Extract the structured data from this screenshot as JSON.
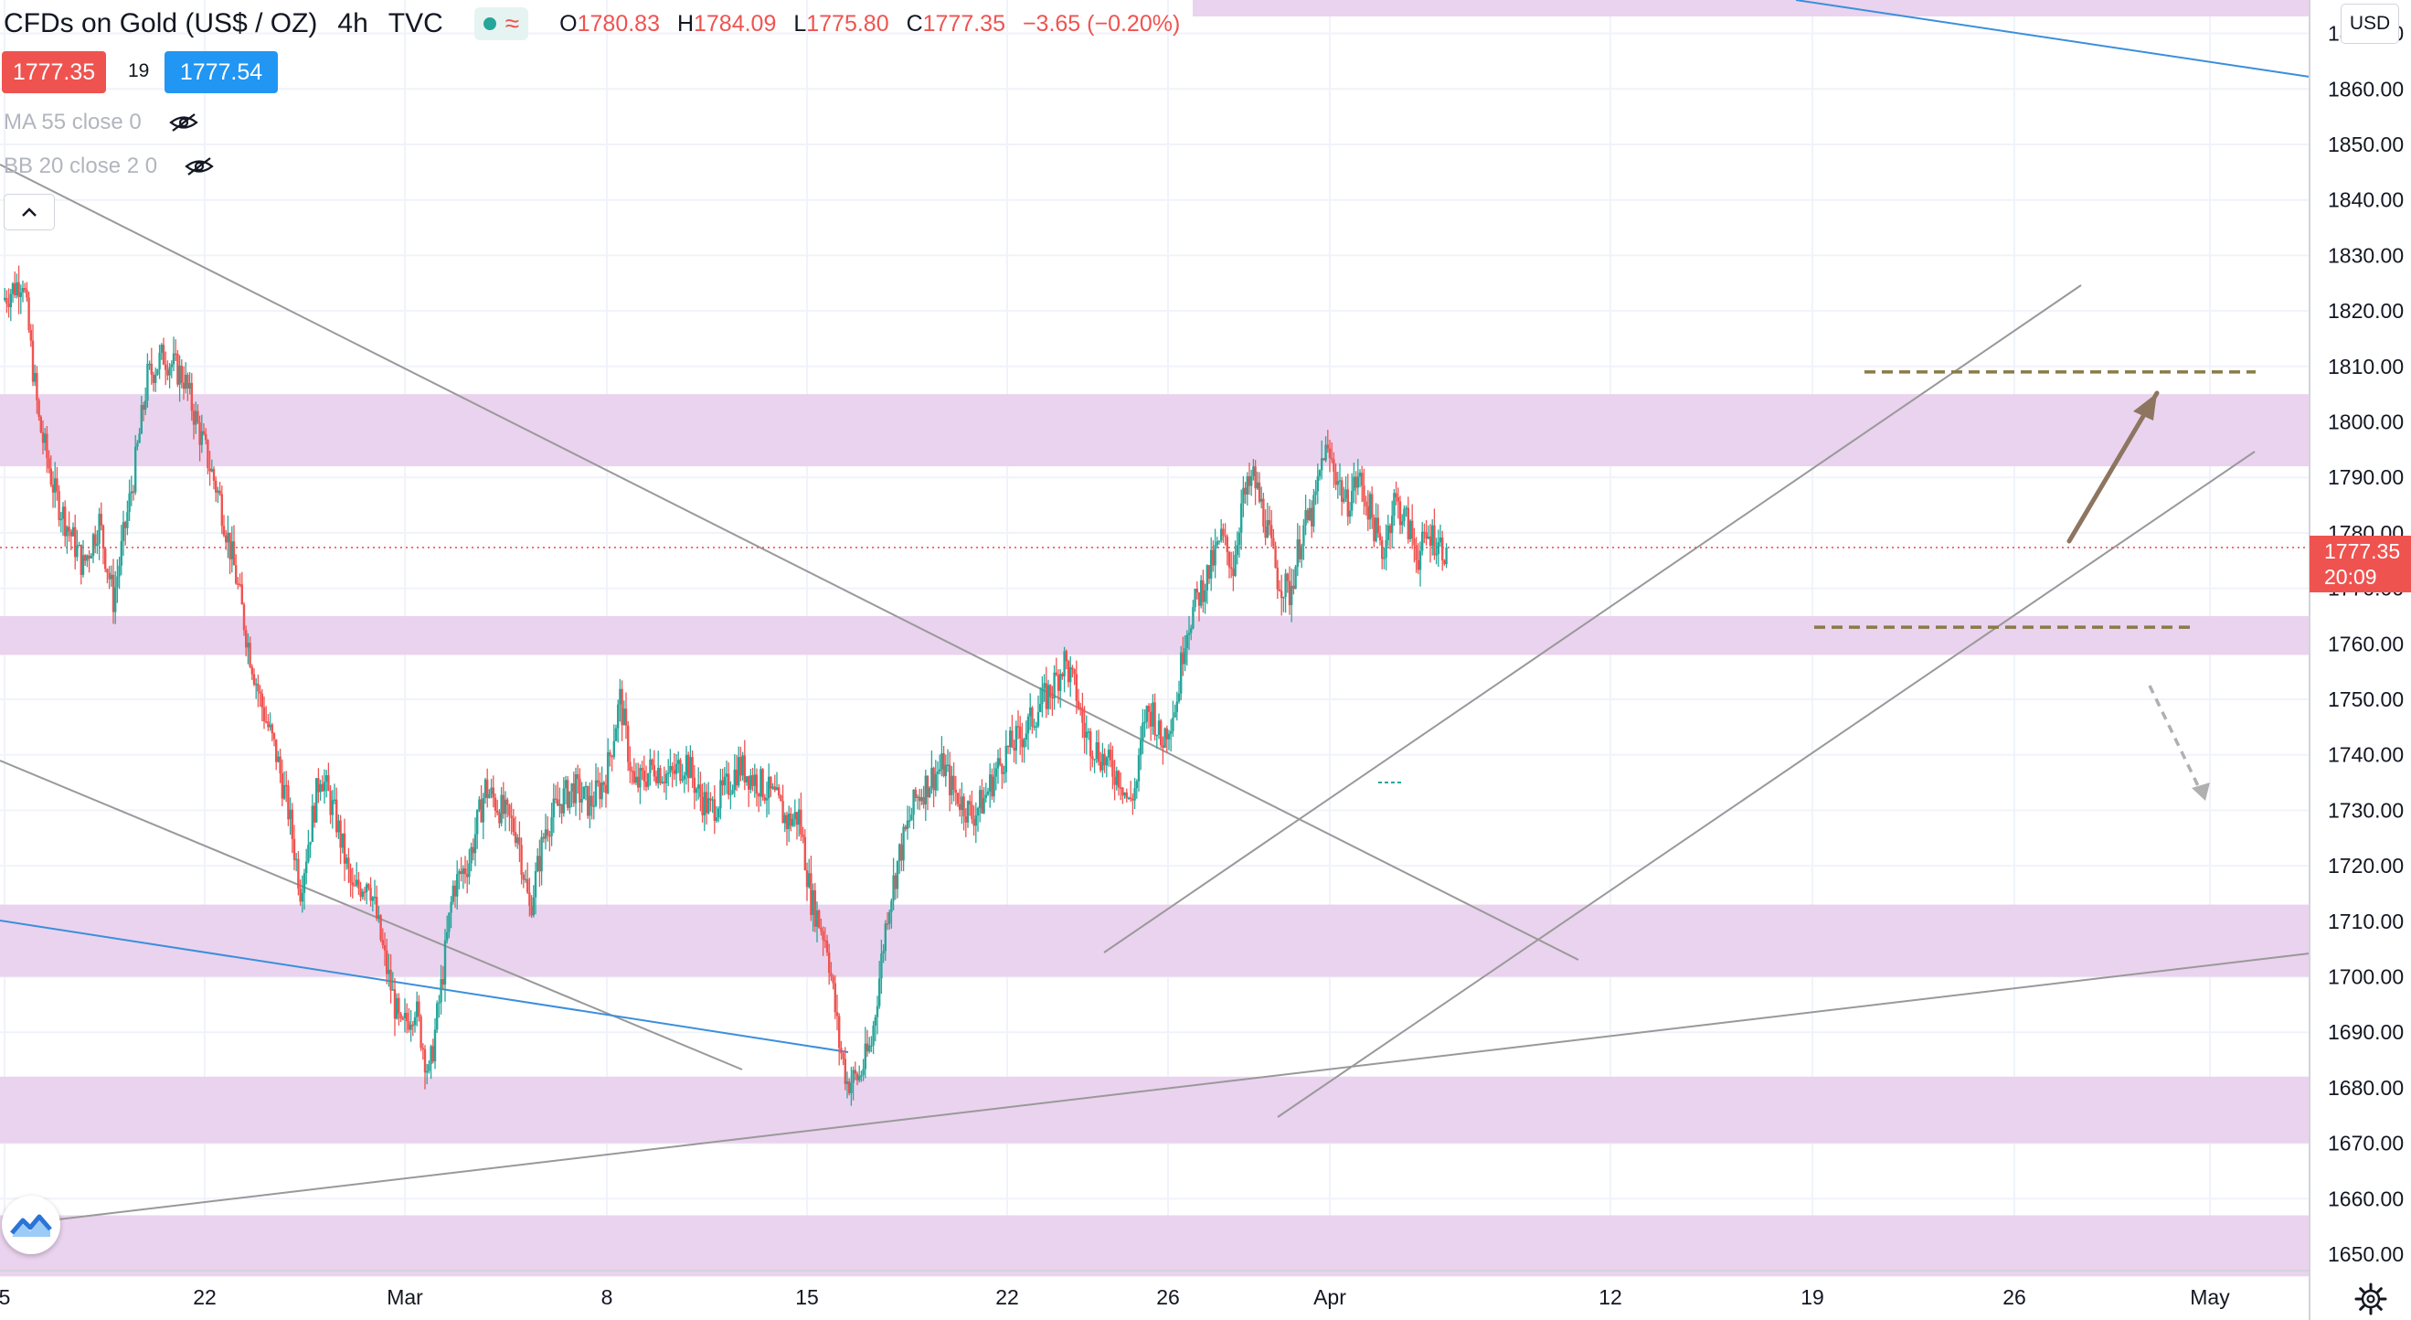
{
  "header": {
    "title": "CFDs on Gold (US$ / OZ)",
    "interval": "4h",
    "source": "TVC",
    "ohlc": {
      "o_label": "O",
      "o": "1780.83",
      "h_label": "H",
      "h": "1784.09",
      "l_label": "L",
      "l": "1775.80",
      "c_label": "C",
      "c": "1777.35",
      "change": "−3.65 (−0.20%)"
    }
  },
  "trade": {
    "sell_price": "1777.35",
    "spread": "19",
    "buy_price": "1777.54"
  },
  "indicators": [
    {
      "label": "MA 55 close 0",
      "icon": "eye-hidden-icon"
    },
    {
      "label": "BB 20 close 2 0",
      "icon": "eye-hidden-icon"
    }
  ],
  "price_scale": {
    "currency": "USD",
    "last_price": "1777.35",
    "countdown": "20:09"
  },
  "colors": {
    "up": "#26a69a",
    "down": "#ef5350",
    "zone": "#ead3ee",
    "trendline": "#999999",
    "blue_line": "#3a8fdc",
    "arrow": "#8d7560",
    "dashed_level": "#8a7a45"
  },
  "chart_data": {
    "type": "candlestick",
    "symbol": "CFDs on Gold (US$ / OZ)",
    "interval": "4h",
    "ylim": [
      1646,
      1874
    ],
    "y_ticks": [
      1650,
      1660,
      1670,
      1680,
      1690,
      1700,
      1710,
      1720,
      1730,
      1740,
      1750,
      1760,
      1770,
      1780,
      1790,
      1800,
      1810,
      1820,
      1830,
      1840,
      1850,
      1860,
      1870
    ],
    "x_ticks": [
      "5",
      "22",
      "Mar",
      "8",
      "15",
      "22",
      "26",
      "Apr",
      "12",
      "19",
      "26",
      "May"
    ],
    "close_path": [
      [
        0,
        1822
      ],
      [
        10,
        1826
      ],
      [
        18,
        1800
      ],
      [
        26,
        1787
      ],
      [
        40,
        1774
      ],
      [
        48,
        1782
      ],
      [
        55,
        1768
      ],
      [
        65,
        1790
      ],
      [
        72,
        1808
      ],
      [
        80,
        1812
      ],
      [
        90,
        1808
      ],
      [
        98,
        1798
      ],
      [
        108,
        1786
      ],
      [
        116,
        1772
      ],
      [
        122,
        1760
      ],
      [
        128,
        1750
      ],
      [
        136,
        1740
      ],
      [
        142,
        1730
      ],
      [
        148,
        1716
      ],
      [
        158,
        1737
      ],
      [
        166,
        1728
      ],
      [
        174,
        1715
      ],
      [
        182,
        1718
      ],
      [
        190,
        1703
      ],
      [
        198,
        1690
      ],
      [
        205,
        1695
      ],
      [
        212,
        1682
      ],
      [
        218,
        1698
      ],
      [
        224,
        1716
      ],
      [
        232,
        1721
      ],
      [
        240,
        1734
      ],
      [
        248,
        1730
      ],
      [
        256,
        1726
      ],
      [
        262,
        1712
      ],
      [
        270,
        1727
      ],
      [
        278,
        1732
      ],
      [
        284,
        1734
      ],
      [
        292,
        1731
      ],
      [
        300,
        1736
      ],
      [
        307,
        1750
      ],
      [
        314,
        1734
      ],
      [
        324,
        1738
      ],
      [
        332,
        1736
      ],
      [
        340,
        1739
      ],
      [
        346,
        1733
      ],
      [
        352,
        1730
      ],
      [
        360,
        1734
      ],
      [
        366,
        1738
      ],
      [
        376,
        1735
      ],
      [
        384,
        1732
      ],
      [
        390,
        1728
      ],
      [
        396,
        1729
      ],
      [
        402,
        1714
      ],
      [
        410,
        1706
      ],
      [
        416,
        1688
      ],
      [
        420,
        1681
      ],
      [
        426,
        1682
      ],
      [
        432,
        1688
      ],
      [
        436,
        1700
      ],
      [
        440,
        1712
      ],
      [
        446,
        1722
      ],
      [
        454,
        1732
      ],
      [
        462,
        1736
      ],
      [
        468,
        1738
      ],
      [
        472,
        1734
      ],
      [
        482,
        1729
      ],
      [
        488,
        1732
      ],
      [
        494,
        1737
      ],
      [
        500,
        1741
      ],
      [
        508,
        1744
      ],
      [
        516,
        1749
      ],
      [
        522,
        1752
      ],
      [
        528,
        1757
      ],
      [
        534,
        1751
      ],
      [
        538,
        1744
      ],
      [
        544,
        1741
      ],
      [
        550,
        1738
      ],
      [
        556,
        1736
      ],
      [
        560,
        1731
      ],
      [
        564,
        1735
      ],
      [
        568,
        1747
      ],
      [
        572,
        1748
      ],
      [
        576,
        1742
      ],
      [
        584,
        1750
      ],
      [
        588,
        1762
      ],
      [
        594,
        1768
      ],
      [
        600,
        1773
      ],
      [
        606,
        1779
      ],
      [
        612,
        1774
      ],
      [
        616,
        1785
      ],
      [
        622,
        1790
      ],
      [
        628,
        1782
      ],
      [
        634,
        1772
      ],
      [
        640,
        1769
      ],
      [
        646,
        1780
      ],
      [
        652,
        1784
      ],
      [
        657,
        1795
      ],
      [
        662,
        1792
      ],
      [
        668,
        1785
      ],
      [
        674,
        1790
      ],
      [
        680,
        1784
      ],
      [
        686,
        1776
      ],
      [
        692,
        1786
      ],
      [
        698,
        1782
      ],
      [
        704,
        1776
      ],
      [
        710,
        1780
      ],
      [
        714,
        1778
      ],
      [
        718,
        1777
      ]
    ],
    "price_zones": [
      [
        1792,
        1805
      ],
      [
        1758,
        1765
      ],
      [
        1700,
        1713
      ],
      [
        1670,
        1682
      ],
      [
        1646,
        1657
      ]
    ],
    "horizontal_levels": [
      1809,
      1763
    ],
    "last_price": 1777.35,
    "annotations": [
      "upward arrow toward ~1807",
      "dashed downward arrow toward ~1731",
      "ascending channel",
      "descending trendlines"
    ]
  }
}
